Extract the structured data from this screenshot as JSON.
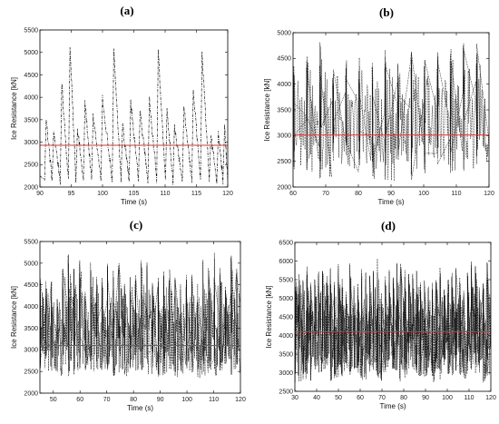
{
  "chart_data": [
    {
      "type": "line",
      "panel_label": "(a)",
      "xlabel": "Time (s)",
      "ylabel": "Ice Resistance [kN]",
      "xlim": [
        90,
        120
      ],
      "ylim": [
        2000,
        5500
      ],
      "xticks": [
        90,
        95,
        100,
        105,
        110,
        115,
        120
      ],
      "yticks": [
        2000,
        2500,
        3000,
        3500,
        4000,
        4500,
        5000,
        5500
      ],
      "mean_line": {
        "value": 2930,
        "color": "#e03030"
      },
      "series_color": "#111111",
      "peaks": [
        {
          "t": 91.0,
          "v": 3500
        },
        {
          "t": 92.2,
          "v": 3250
        },
        {
          "t": 93.5,
          "v": 4300
        },
        {
          "t": 94.8,
          "v": 5100
        },
        {
          "t": 96.0,
          "v": 3300
        },
        {
          "t": 97.2,
          "v": 3900
        },
        {
          "t": 98.5,
          "v": 3600
        },
        {
          "t": 100.0,
          "v": 4000
        },
        {
          "t": 101.8,
          "v": 5050
        },
        {
          "t": 103.2,
          "v": 3400
        },
        {
          "t": 104.5,
          "v": 3900
        },
        {
          "t": 106.0,
          "v": 3700
        },
        {
          "t": 107.5,
          "v": 4000
        },
        {
          "t": 108.9,
          "v": 5050
        },
        {
          "t": 110.3,
          "v": 3750
        },
        {
          "t": 111.5,
          "v": 3350
        },
        {
          "t": 113.0,
          "v": 3750
        },
        {
          "t": 114.5,
          "v": 4150
        },
        {
          "t": 115.9,
          "v": 5000
        },
        {
          "t": 117.3,
          "v": 3150
        },
        {
          "t": 118.5,
          "v": 3250
        },
        {
          "t": 119.5,
          "v": 3350
        }
      ],
      "trough": 2050
    },
    {
      "type": "line",
      "panel_label": "(b)",
      "xlabel": "Time (s)",
      "ylabel": "Ice Resistance [kN]",
      "xlim": [
        60,
        120
      ],
      "ylim": [
        2000,
        5000
      ],
      "xticks": [
        60,
        70,
        80,
        90,
        100,
        110,
        120
      ],
      "yticks": [
        2000,
        2500,
        3000,
        3500,
        4000,
        4500,
        5000
      ],
      "mean_line": {
        "value": 3010,
        "color": "#e03030"
      },
      "series_color": "#111111",
      "band": {
        "period": 4.0,
        "low_min": 2050,
        "low_max": 2400,
        "high_min": 4300,
        "high_max": 4850
      }
    },
    {
      "type": "line",
      "panel_label": "(c)",
      "xlabel": "Time (s)",
      "ylabel": "Ice Resistance [kN]",
      "xlim": [
        45,
        120
      ],
      "ylim": [
        2000,
        5500
      ],
      "xticks": [
        50,
        60,
        70,
        80,
        90,
        100,
        110,
        120
      ],
      "yticks": [
        2000,
        2500,
        3000,
        3500,
        4000,
        4500,
        5000,
        5500
      ],
      "mean_line": {
        "value": 3100,
        "color": "#e03030"
      },
      "series_color": "#111111",
      "band": {
        "period": 2.1,
        "low_min": 2300,
        "low_max": 2550,
        "high_min": 4400,
        "high_max": 5300
      }
    },
    {
      "type": "line",
      "panel_label": "(d)",
      "xlabel": "Time (s)",
      "ylabel": "Ice Resistance [kN]",
      "xlim": [
        30,
        120
      ],
      "ylim": [
        2500,
        6500
      ],
      "xticks": [
        30,
        40,
        50,
        60,
        70,
        80,
        90,
        100,
        110,
        120
      ],
      "yticks": [
        2500,
        3000,
        3500,
        4000,
        4500,
        5000,
        5500,
        6000,
        6500
      ],
      "mean_line": {
        "value": 4100,
        "color": "#e03030"
      },
      "series_color": "#111111",
      "band": {
        "period": 1.8,
        "low_min": 2700,
        "low_max": 3100,
        "high_min": 5200,
        "high_max": 6100
      }
    }
  ]
}
